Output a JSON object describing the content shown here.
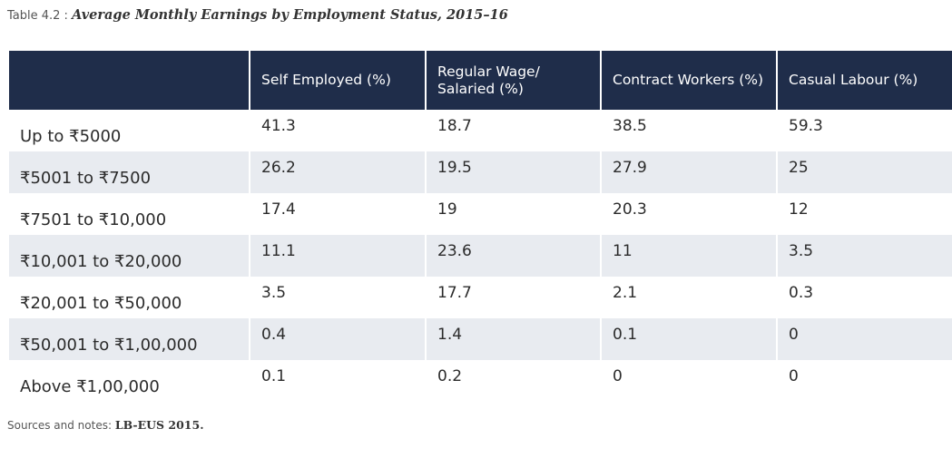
{
  "caption": {
    "label": "Table 4.2 : ",
    "title": "Average Monthly Earnings by Employment Status, 2015–16"
  },
  "table": {
    "header": {
      "blank": "",
      "col1": "Self Employed (%)",
      "col2": "Regular Wage/ Salaried (%)",
      "col3": "Contract Workers (%)",
      "col4": "Casual Labour (%)"
    },
    "rows": [
      {
        "label": "Up to ₹5000",
        "v1": "41.3",
        "v2": "18.7",
        "v3": "38.5",
        "v4": "59.3"
      },
      {
        "label": "₹5001 to ₹7500",
        "v1": "26.2",
        "v2": "19.5",
        "v3": "27.9",
        "v4": "25"
      },
      {
        "label": "₹7501 to ₹10,000",
        "v1": "17.4",
        "v2": "19",
        "v3": "20.3",
        "v4": "12"
      },
      {
        "label": "₹10,001 to ₹20,000",
        "v1": "11.1",
        "v2": "23.6",
        "v3": "11",
        "v4": "3.5"
      },
      {
        "label": "₹20,001 to ₹50,000",
        "v1": "3.5",
        "v2": "17.7",
        "v3": "2.1",
        "v4": "0.3"
      },
      {
        "label": "₹50,001 to ₹1,00,000",
        "v1": "0.4",
        "v2": "1.4",
        "v3": "0.1",
        "v4": "0"
      },
      {
        "label": "Above ₹1,00,000",
        "v1": "0.1",
        "v2": "0.2",
        "v3": "0",
        "v4": "0"
      }
    ]
  },
  "sources": {
    "label": "Sources and notes: ",
    "value": "LB-EUS 2015."
  },
  "colors": {
    "header_bg": "#1f2d4a",
    "header_text": "#ffffff",
    "stripe_bg": "#e8ebf0"
  }
}
